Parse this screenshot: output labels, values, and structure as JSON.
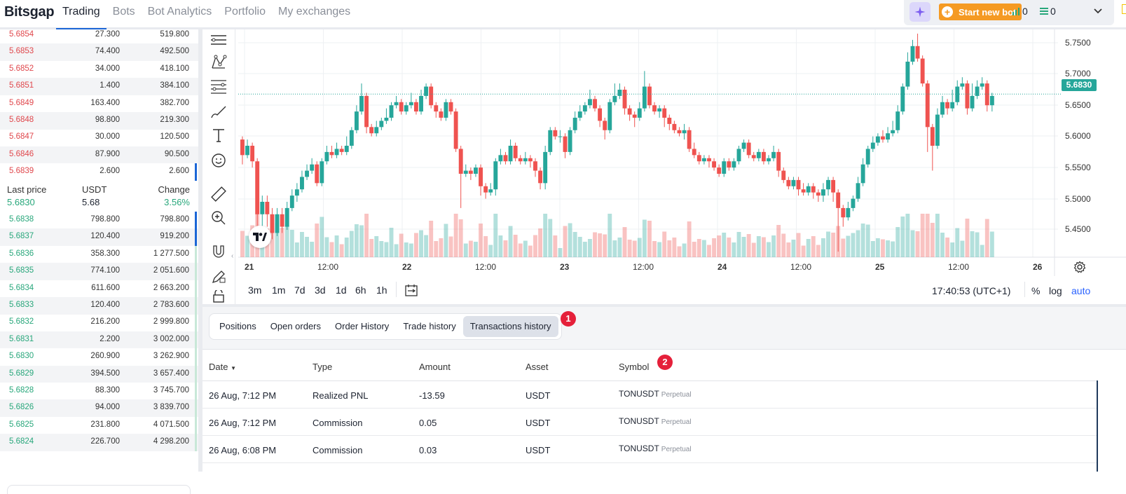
{
  "app": {
    "logo": "Bitsgap"
  },
  "nav": {
    "items": [
      "Trading",
      "Bots",
      "Bot Analytics",
      "Portfolio",
      "My exchanges"
    ],
    "active": "Trading"
  },
  "header_right": {
    "start_new_bot": "Start new bot",
    "bar_count": "0",
    "list_count": "0"
  },
  "orderbook": {
    "asks": [
      {
        "price": "5.6854",
        "amount": "27.300",
        "total": "519.800"
      },
      {
        "price": "5.6853",
        "amount": "74.400",
        "total": "492.500"
      },
      {
        "price": "5.6852",
        "amount": "34.000",
        "total": "418.100"
      },
      {
        "price": "5.6851",
        "amount": "1.400",
        "total": "384.100"
      },
      {
        "price": "5.6849",
        "amount": "163.400",
        "total": "382.700"
      },
      {
        "price": "5.6848",
        "amount": "98.800",
        "total": "219.300"
      },
      {
        "price": "5.6847",
        "amount": "30.000",
        "total": "120.500"
      },
      {
        "price": "5.6846",
        "amount": "87.900",
        "total": "90.500"
      },
      {
        "price": "5.6839",
        "amount": "2.600",
        "total": "2.600"
      }
    ],
    "last_price": {
      "label": "Last price",
      "value": "5.6830",
      "currency_label": "USDT",
      "currency_value": "5.68",
      "change_label": "Change",
      "change_value": "3.56%"
    },
    "bids": [
      {
        "price": "5.6838",
        "amount": "798.800",
        "total": "798.800"
      },
      {
        "price": "5.6837",
        "amount": "120.400",
        "total": "919.200"
      },
      {
        "price": "5.6836",
        "amount": "358.300",
        "total": "1 277.500"
      },
      {
        "price": "5.6835",
        "amount": "774.100",
        "total": "2 051.600"
      },
      {
        "price": "5.6834",
        "amount": "611.600",
        "total": "2 663.200"
      },
      {
        "price": "5.6833",
        "amount": "120.400",
        "total": "2 783.600"
      },
      {
        "price": "5.6832",
        "amount": "216.200",
        "total": "2 999.800"
      },
      {
        "price": "5.6831",
        "amount": "2.200",
        "total": "3 002.000"
      },
      {
        "price": "5.6830",
        "amount": "260.900",
        "total": "3 262.900"
      },
      {
        "price": "5.6829",
        "amount": "394.500",
        "total": "3 657.400"
      },
      {
        "price": "5.6828",
        "amount": "88.300",
        "total": "3 745.700"
      },
      {
        "price": "5.6826",
        "amount": "94.000",
        "total": "3 839.700"
      },
      {
        "price": "5.6825",
        "amount": "231.800",
        "total": "4 071.500"
      },
      {
        "price": "5.6824",
        "amount": "226.700",
        "total": "4 298.200"
      }
    ]
  },
  "chart": {
    "current_price": "5.6830",
    "y_ticks": [
      "5.7500",
      "5.7000",
      "5.6500",
      "5.6000",
      "5.5500",
      "5.5000",
      "5.4500"
    ],
    "x_ticks": [
      {
        "label": "21",
        "bold": true
      },
      {
        "label": "12:00",
        "bold": false
      },
      {
        "label": "22",
        "bold": true
      },
      {
        "label": "12:00",
        "bold": false
      },
      {
        "label": "23",
        "bold": true
      },
      {
        "label": "12:00",
        "bold": false
      },
      {
        "label": "24",
        "bold": true
      },
      {
        "label": "12:00",
        "bold": false
      },
      {
        "label": "25",
        "bold": true
      },
      {
        "label": "12:00",
        "bold": false
      },
      {
        "label": "26",
        "bold": true
      }
    ],
    "timeframes": [
      "3m",
      "1m",
      "7d",
      "3d",
      "1d",
      "6h",
      "1h"
    ],
    "clock": "17:40:53 (UTC+1)",
    "options": {
      "percent": "%",
      "log": "log",
      "auto": "auto"
    },
    "accent_up": "#26a69a",
    "accent_down": "#ef5350"
  },
  "chart_data": {
    "type": "candlestick",
    "x_range_days": [
      "21",
      "26"
    ],
    "ylim": [
      5.42,
      5.78
    ],
    "candles": [
      [
        5.61,
        5.585,
        5.615,
        5.57
      ],
      [
        5.585,
        5.6,
        5.61,
        5.58
      ],
      [
        5.6,
        5.575,
        5.605,
        5.565
      ],
      [
        5.575,
        5.49,
        5.58,
        5.46
      ],
      [
        5.49,
        5.51,
        5.52,
        5.47
      ],
      [
        5.51,
        5.49,
        5.52,
        5.47
      ],
      [
        5.49,
        5.46,
        5.5,
        5.45
      ],
      [
        5.46,
        5.49,
        5.5,
        5.455
      ],
      [
        5.49,
        5.47,
        5.5,
        5.46
      ],
      [
        5.47,
        5.5,
        5.51,
        5.465
      ],
      [
        5.5,
        5.52,
        5.53,
        5.495
      ],
      [
        5.52,
        5.53,
        5.54,
        5.51
      ],
      [
        5.53,
        5.55,
        5.56,
        5.525
      ],
      [
        5.55,
        5.56,
        5.57,
        5.545
      ],
      [
        5.56,
        5.57,
        5.58,
        5.555
      ],
      [
        5.57,
        5.54,
        5.575,
        5.535
      ],
      [
        5.54,
        5.575,
        5.58,
        5.535
      ],
      [
        5.575,
        5.59,
        5.6,
        5.57
      ],
      [
        5.59,
        5.585,
        5.6,
        5.58
      ],
      [
        5.585,
        5.595,
        5.605,
        5.58
      ],
      [
        5.595,
        5.59,
        5.6,
        5.585
      ],
      [
        5.59,
        5.6,
        5.615,
        5.585
      ],
      [
        5.6,
        5.625,
        5.63,
        5.595
      ],
      [
        5.625,
        5.655,
        5.665,
        5.62
      ],
      [
        5.655,
        5.68,
        5.7,
        5.65
      ],
      [
        5.68,
        5.63,
        5.685,
        5.62
      ],
      [
        5.63,
        5.62,
        5.635,
        5.615
      ],
      [
        5.62,
        5.63,
        5.64,
        5.615
      ],
      [
        5.63,
        5.64,
        5.645,
        5.625
      ],
      [
        5.64,
        5.645,
        5.66,
        5.635
      ],
      [
        5.645,
        5.665,
        5.67,
        5.64
      ],
      [
        5.665,
        5.67,
        5.68,
        5.66
      ],
      [
        5.67,
        5.655,
        5.675,
        5.65
      ],
      [
        5.655,
        5.665,
        5.67,
        5.65
      ],
      [
        5.665,
        5.67,
        5.685,
        5.66
      ],
      [
        5.67,
        5.655,
        5.675,
        5.65
      ],
      [
        5.655,
        5.68,
        5.69,
        5.65
      ],
      [
        5.68,
        5.695,
        5.7,
        5.675
      ],
      [
        5.695,
        5.665,
        5.7,
        5.66
      ],
      [
        5.665,
        5.655,
        5.67,
        5.645
      ],
      [
        5.655,
        5.645,
        5.66,
        5.64
      ],
      [
        5.645,
        5.67,
        5.675,
        5.64
      ],
      [
        5.67,
        5.655,
        5.675,
        5.65
      ],
      [
        5.655,
        5.595,
        5.66,
        5.59
      ],
      [
        5.595,
        5.555,
        5.6,
        5.5
      ],
      [
        5.555,
        5.56,
        5.57,
        5.55
      ],
      [
        5.56,
        5.555,
        5.565,
        5.545
      ],
      [
        5.555,
        5.565,
        5.57,
        5.55
      ],
      [
        5.565,
        5.535,
        5.57,
        5.52
      ],
      [
        5.535,
        5.525,
        5.54,
        5.515
      ],
      [
        5.525,
        5.53,
        5.54,
        5.52
      ],
      [
        5.53,
        5.575,
        5.58,
        5.52
      ],
      [
        5.575,
        5.585,
        5.595,
        5.57
      ],
      [
        5.585,
        5.575,
        5.59,
        5.57
      ],
      [
        5.575,
        5.6,
        5.61,
        5.57
      ],
      [
        5.6,
        5.58,
        5.605,
        5.575
      ],
      [
        5.58,
        5.575,
        5.585,
        5.57
      ],
      [
        5.575,
        5.58,
        5.59,
        5.57
      ],
      [
        5.58,
        5.575,
        5.585,
        5.565
      ],
      [
        5.575,
        5.56,
        5.58,
        5.55
      ],
      [
        5.56,
        5.54,
        5.565,
        5.53
      ],
      [
        5.54,
        5.59,
        5.6,
        5.53
      ],
      [
        5.59,
        5.625,
        5.63,
        5.585
      ],
      [
        5.625,
        5.615,
        5.63,
        5.61
      ],
      [
        5.615,
        5.615,
        5.625,
        5.605
      ],
      [
        5.615,
        5.59,
        5.62,
        5.58
      ],
      [
        5.59,
        5.625,
        5.63,
        5.585
      ],
      [
        5.625,
        5.645,
        5.655,
        5.62
      ],
      [
        5.645,
        5.655,
        5.665,
        5.64
      ],
      [
        5.655,
        5.665,
        5.67,
        5.65
      ],
      [
        5.665,
        5.675,
        5.69,
        5.66
      ],
      [
        5.675,
        5.66,
        5.68,
        5.655
      ],
      [
        5.66,
        5.64,
        5.665,
        5.63
      ],
      [
        5.64,
        5.625,
        5.645,
        5.61
      ],
      [
        5.625,
        5.67,
        5.675,
        5.62
      ],
      [
        5.67,
        5.68,
        5.7,
        5.665
      ],
      [
        5.68,
        5.69,
        5.7,
        5.675
      ],
      [
        5.69,
        5.66,
        5.695,
        5.65
      ],
      [
        5.66,
        5.65,
        5.665,
        5.64
      ],
      [
        5.65,
        5.645,
        5.655,
        5.63
      ],
      [
        5.645,
        5.66,
        5.67,
        5.64
      ],
      [
        5.66,
        5.695,
        5.72,
        5.655
      ],
      [
        5.695,
        5.665,
        5.7,
        5.66
      ],
      [
        5.665,
        5.655,
        5.67,
        5.65
      ],
      [
        5.655,
        5.66,
        5.665,
        5.645
      ],
      [
        5.66,
        5.645,
        5.665,
        5.63
      ],
      [
        5.645,
        5.635,
        5.65,
        5.625
      ],
      [
        5.635,
        5.625,
        5.64,
        5.62
      ],
      [
        5.625,
        5.62,
        5.63,
        5.615
      ],
      [
        5.62,
        5.625,
        5.635,
        5.61
      ],
      [
        5.625,
        5.595,
        5.63,
        5.59
      ],
      [
        5.595,
        5.585,
        5.605,
        5.58
      ],
      [
        5.585,
        5.575,
        5.59,
        5.57
      ],
      [
        5.575,
        5.58,
        5.585,
        5.57
      ],
      [
        5.58,
        5.575,
        5.585,
        5.565
      ],
      [
        5.575,
        5.565,
        5.58,
        5.56
      ],
      [
        5.565,
        5.555,
        5.57,
        5.55
      ],
      [
        5.555,
        5.575,
        5.58,
        5.55
      ],
      [
        5.575,
        5.565,
        5.58,
        5.56
      ],
      [
        5.565,
        5.575,
        5.58,
        5.56
      ],
      [
        5.575,
        5.595,
        5.6,
        5.57
      ],
      [
        5.595,
        5.605,
        5.61,
        5.59
      ],
      [
        5.605,
        5.585,
        5.61,
        5.58
      ],
      [
        5.585,
        5.58,
        5.59,
        5.575
      ],
      [
        5.58,
        5.59,
        5.595,
        5.575
      ],
      [
        5.59,
        5.575,
        5.595,
        5.57
      ],
      [
        5.575,
        5.58,
        5.585,
        5.57
      ],
      [
        5.58,
        5.59,
        5.6,
        5.575
      ],
      [
        5.59,
        5.56,
        5.595,
        5.55
      ],
      [
        5.56,
        5.545,
        5.565,
        5.54
      ],
      [
        5.545,
        5.535,
        5.55,
        5.53
      ],
      [
        5.535,
        5.545,
        5.55,
        5.53
      ],
      [
        5.545,
        5.53,
        5.55,
        5.52
      ],
      [
        5.53,
        5.525,
        5.54,
        5.52
      ],
      [
        5.525,
        5.535,
        5.54,
        5.52
      ],
      [
        5.535,
        5.525,
        5.54,
        5.515
      ],
      [
        5.525,
        5.52,
        5.53,
        5.51
      ],
      [
        5.52,
        5.53,
        5.54,
        5.51
      ],
      [
        5.53,
        5.545,
        5.55,
        5.52
      ],
      [
        5.545,
        5.525,
        5.55,
        5.51
      ],
      [
        5.525,
        5.5,
        5.53,
        5.43
      ],
      [
        5.5,
        5.485,
        5.505,
        5.47
      ],
      [
        5.485,
        5.5,
        5.51,
        5.48
      ],
      [
        5.5,
        5.515,
        5.52,
        5.495
      ],
      [
        5.515,
        5.54,
        5.55,
        5.51
      ],
      [
        5.54,
        5.57,
        5.58,
        5.535
      ],
      [
        5.57,
        5.595,
        5.6,
        5.565
      ],
      [
        5.595,
        5.605,
        5.615,
        5.59
      ],
      [
        5.605,
        5.615,
        5.62,
        5.6
      ],
      [
        5.615,
        5.61,
        5.625,
        5.605
      ],
      [
        5.61,
        5.62,
        5.63,
        5.605
      ],
      [
        5.62,
        5.625,
        5.64,
        5.615
      ],
      [
        5.625,
        5.655,
        5.665,
        5.62
      ],
      [
        5.655,
        5.695,
        5.7,
        5.65
      ],
      [
        5.695,
        5.735,
        5.75,
        5.69
      ],
      [
        5.735,
        5.76,
        5.77,
        5.73
      ],
      [
        5.76,
        5.74,
        5.78,
        5.735
      ],
      [
        5.74,
        5.7,
        5.745,
        5.695
      ],
      [
        5.7,
        5.63,
        5.705,
        5.59
      ],
      [
        5.63,
        5.6,
        5.635,
        5.56
      ],
      [
        5.6,
        5.65,
        5.66,
        5.595
      ],
      [
        5.65,
        5.67,
        5.68,
        5.645
      ],
      [
        5.67,
        5.66,
        5.675,
        5.65
      ],
      [
        5.66,
        5.67,
        5.69,
        5.655
      ],
      [
        5.67,
        5.695,
        5.705,
        5.665
      ],
      [
        5.695,
        5.7,
        5.71,
        5.69
      ],
      [
        5.7,
        5.66,
        5.705,
        5.65
      ],
      [
        5.66,
        5.68,
        5.7,
        5.655
      ],
      [
        5.68,
        5.695,
        5.705,
        5.675
      ],
      [
        5.695,
        5.7,
        5.71,
        5.69
      ],
      [
        5.7,
        5.665,
        5.705,
        5.655
      ],
      [
        5.665,
        5.68,
        5.685,
        5.655
      ]
    ]
  },
  "bottom": {
    "tabs": [
      "Positions",
      "Open orders",
      "Order History",
      "Trade history",
      "Transactions history"
    ],
    "active_tab": "Transactions history",
    "badges": [
      "1",
      "2"
    ],
    "columns": {
      "date": "Date",
      "type": "Type",
      "amount": "Amount",
      "asset": "Asset",
      "symbol": "Symbol"
    },
    "rows": [
      {
        "date": "26 Aug, 7:12 PM",
        "type": "Realized PNL",
        "amount": "-13.59",
        "asset": "USDT",
        "symbol": "TONUSDT",
        "contract": "Perpetual"
      },
      {
        "date": "26 Aug, 7:12 PM",
        "type": "Commission",
        "amount": "0.05",
        "asset": "USDT",
        "symbol": "TONUSDT",
        "contract": "Perpetual"
      },
      {
        "date": "26 Aug, 6:08 PM",
        "type": "Commission",
        "amount": "0.03",
        "asset": "USDT",
        "symbol": "TONUSDT",
        "contract": "Perpetual"
      }
    ]
  }
}
